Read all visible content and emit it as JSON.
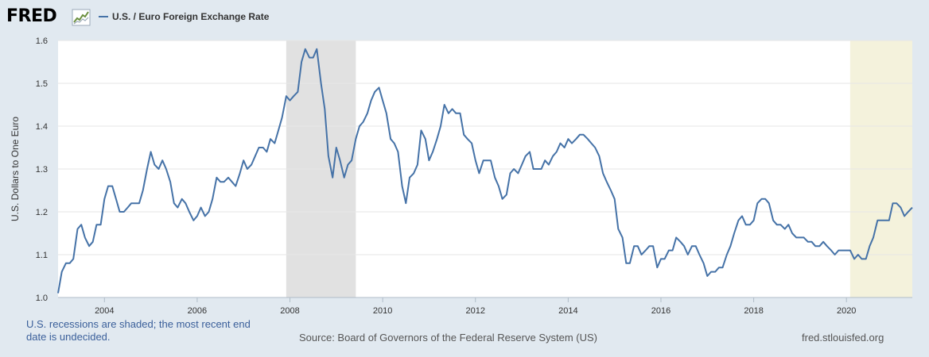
{
  "header": {
    "logo_text": "FRED",
    "logo_icon": "trend-graph-icon",
    "legend_label": "U.S. / Euro Foreign Exchange Rate"
  },
  "footer": {
    "note": "U.S. recessions are shaded; the most recent end date is undecided.",
    "source": "Source: Board of Governors of the Federal Reserve System (US)",
    "url": "fred.stlouisfed.org"
  },
  "colors": {
    "series": "#4572a7",
    "recession_shade": "#e1e1e1",
    "undecided_shade": "#f4f2dc",
    "background": "#e1e9f0"
  },
  "chart_data": {
    "type": "line",
    "title": "",
    "xlabel": "",
    "ylabel": "U.S. Dollars to One Euro",
    "xlim": [
      2003.0,
      2021.42
    ],
    "ylim": [
      1.0,
      1.6
    ],
    "yticks": [
      1.0,
      1.1,
      1.2,
      1.3,
      1.4,
      1.5,
      1.6
    ],
    "ytick_labels": [
      "1.0",
      "1.1",
      "1.2",
      "1.3",
      "1.4",
      "1.5",
      "1.6"
    ],
    "xticks": [
      2004,
      2006,
      2008,
      2010,
      2012,
      2014,
      2016,
      2018,
      2020
    ],
    "xtick_labels": [
      "2004",
      "2006",
      "2008",
      "2010",
      "2012",
      "2014",
      "2016",
      "2018",
      "2020"
    ],
    "grid": "horizontal",
    "legend": "top-left",
    "recessions": [
      {
        "start": 2007.92,
        "end": 2009.42,
        "undecided": false
      },
      {
        "start": 2020.08,
        "end": 2021.42,
        "undecided": true
      }
    ],
    "series": [
      {
        "name": "U.S. / Euro Foreign Exchange Rate",
        "x": [
          2003.0,
          2003.08,
          2003.17,
          2003.25,
          2003.33,
          2003.42,
          2003.5,
          2003.58,
          2003.67,
          2003.75,
          2003.83,
          2003.92,
          2004.0,
          2004.08,
          2004.17,
          2004.25,
          2004.33,
          2004.42,
          2004.5,
          2004.58,
          2004.67,
          2004.75,
          2004.83,
          2004.92,
          2005.0,
          2005.08,
          2005.17,
          2005.25,
          2005.33,
          2005.42,
          2005.5,
          2005.58,
          2005.67,
          2005.75,
          2005.83,
          2005.92,
          2006.0,
          2006.08,
          2006.17,
          2006.25,
          2006.33,
          2006.42,
          2006.5,
          2006.58,
          2006.67,
          2006.75,
          2006.83,
          2006.92,
          2007.0,
          2007.08,
          2007.17,
          2007.25,
          2007.33,
          2007.42,
          2007.5,
          2007.58,
          2007.67,
          2007.75,
          2007.83,
          2007.92,
          2008.0,
          2008.08,
          2008.17,
          2008.25,
          2008.33,
          2008.42,
          2008.5,
          2008.58,
          2008.67,
          2008.75,
          2008.83,
          2008.92,
          2009.0,
          2009.08,
          2009.17,
          2009.25,
          2009.33,
          2009.42,
          2009.5,
          2009.58,
          2009.67,
          2009.75,
          2009.83,
          2009.92,
          2010.0,
          2010.08,
          2010.17,
          2010.25,
          2010.33,
          2010.42,
          2010.5,
          2010.58,
          2010.67,
          2010.75,
          2010.83,
          2010.92,
          2011.0,
          2011.08,
          2011.17,
          2011.25,
          2011.33,
          2011.42,
          2011.5,
          2011.58,
          2011.67,
          2011.75,
          2011.83,
          2011.92,
          2012.0,
          2012.08,
          2012.17,
          2012.25,
          2012.33,
          2012.42,
          2012.5,
          2012.58,
          2012.67,
          2012.75,
          2012.83,
          2012.92,
          2013.0,
          2013.08,
          2013.17,
          2013.25,
          2013.33,
          2013.42,
          2013.5,
          2013.58,
          2013.67,
          2013.75,
          2013.83,
          2013.92,
          2014.0,
          2014.08,
          2014.17,
          2014.25,
          2014.33,
          2014.42,
          2014.5,
          2014.58,
          2014.67,
          2014.75,
          2014.83,
          2014.92,
          2015.0,
          2015.08,
          2015.17,
          2015.25,
          2015.33,
          2015.42,
          2015.5,
          2015.58,
          2015.67,
          2015.75,
          2015.83,
          2015.92,
          2016.0,
          2016.08,
          2016.17,
          2016.25,
          2016.33,
          2016.42,
          2016.5,
          2016.58,
          2016.67,
          2016.75,
          2016.83,
          2016.92,
          2017.0,
          2017.08,
          2017.17,
          2017.25,
          2017.33,
          2017.42,
          2017.5,
          2017.58,
          2017.67,
          2017.75,
          2017.83,
          2017.92,
          2018.0,
          2018.08,
          2018.17,
          2018.25,
          2018.33,
          2018.42,
          2018.5,
          2018.58,
          2018.67,
          2018.75,
          2018.83,
          2018.92,
          2019.0,
          2019.08,
          2019.17,
          2019.25,
          2019.33,
          2019.42,
          2019.5,
          2019.58,
          2019.67,
          2019.75,
          2019.83,
          2019.92,
          2020.0,
          2020.08,
          2020.17,
          2020.25,
          2020.33,
          2020.42,
          2020.5,
          2020.58,
          2020.67,
          2020.75,
          2020.83,
          2020.92,
          2021.0,
          2021.08,
          2021.17,
          2021.25,
          2021.33,
          2021.42
        ],
        "values": [
          1.01,
          1.06,
          1.08,
          1.08,
          1.09,
          1.16,
          1.17,
          1.14,
          1.12,
          1.13,
          1.17,
          1.17,
          1.23,
          1.26,
          1.26,
          1.23,
          1.2,
          1.2,
          1.21,
          1.22,
          1.22,
          1.22,
          1.25,
          1.3,
          1.34,
          1.31,
          1.3,
          1.32,
          1.3,
          1.27,
          1.22,
          1.21,
          1.23,
          1.22,
          1.2,
          1.18,
          1.19,
          1.21,
          1.19,
          1.2,
          1.23,
          1.28,
          1.27,
          1.27,
          1.28,
          1.27,
          1.26,
          1.29,
          1.32,
          1.3,
          1.31,
          1.33,
          1.35,
          1.35,
          1.34,
          1.37,
          1.36,
          1.39,
          1.42,
          1.47,
          1.46,
          1.47,
          1.48,
          1.55,
          1.58,
          1.56,
          1.56,
          1.58,
          1.5,
          1.44,
          1.33,
          1.28,
          1.35,
          1.32,
          1.28,
          1.31,
          1.32,
          1.37,
          1.4,
          1.41,
          1.43,
          1.46,
          1.48,
          1.49,
          1.46,
          1.43,
          1.37,
          1.36,
          1.34,
          1.26,
          1.22,
          1.28,
          1.29,
          1.31,
          1.39,
          1.37,
          1.32,
          1.34,
          1.37,
          1.4,
          1.45,
          1.43,
          1.44,
          1.43,
          1.43,
          1.38,
          1.37,
          1.36,
          1.32,
          1.29,
          1.32,
          1.32,
          1.32,
          1.28,
          1.26,
          1.23,
          1.24,
          1.29,
          1.3,
          1.29,
          1.31,
          1.33,
          1.34,
          1.3,
          1.3,
          1.3,
          1.32,
          1.31,
          1.33,
          1.34,
          1.36,
          1.35,
          1.37,
          1.36,
          1.37,
          1.38,
          1.38,
          1.37,
          1.36,
          1.35,
          1.33,
          1.29,
          1.27,
          1.25,
          1.23,
          1.16,
          1.14,
          1.08,
          1.08,
          1.12,
          1.12,
          1.1,
          1.11,
          1.12,
          1.12,
          1.07,
          1.09,
          1.09,
          1.11,
          1.11,
          1.14,
          1.13,
          1.12,
          1.1,
          1.12,
          1.12,
          1.1,
          1.08,
          1.05,
          1.06,
          1.06,
          1.07,
          1.07,
          1.1,
          1.12,
          1.15,
          1.18,
          1.19,
          1.17,
          1.17,
          1.18,
          1.22,
          1.23,
          1.23,
          1.22,
          1.18,
          1.17,
          1.17,
          1.16,
          1.17,
          1.15,
          1.14,
          1.14,
          1.14,
          1.13,
          1.13,
          1.12,
          1.12,
          1.13,
          1.12,
          1.11,
          1.1,
          1.11,
          1.11,
          1.11,
          1.11,
          1.09,
          1.1,
          1.09,
          1.09,
          1.12,
          1.14,
          1.18,
          1.18,
          1.18,
          1.18,
          1.22,
          1.22,
          1.21,
          1.19,
          1.2,
          1.21
        ]
      }
    ]
  }
}
